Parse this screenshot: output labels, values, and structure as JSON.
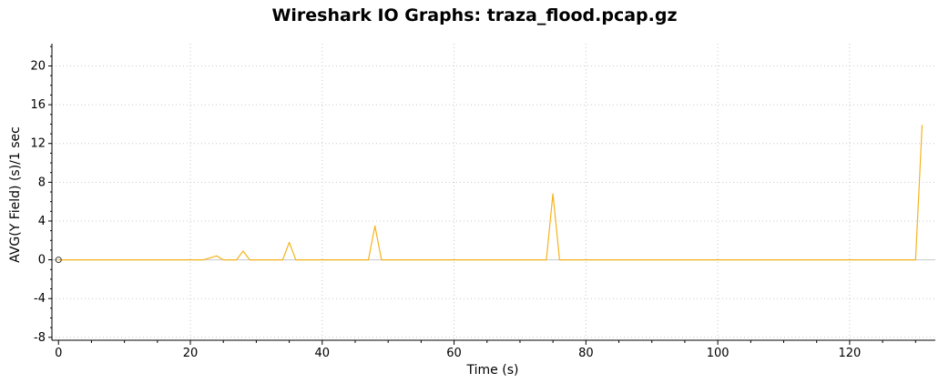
{
  "chart_data": {
    "type": "line",
    "title": "Wireshark IO Graphs: traza_flood.pcap.gz",
    "xlabel": "Time (s)",
    "ylabel": "AVG(Y Field) (s)/1 sec",
    "xlim": [
      -1,
      133
    ],
    "ylim": [
      -8.3,
      22.3
    ],
    "x_ticks": [
      0,
      20,
      40,
      60,
      80,
      100,
      120
    ],
    "y_ticks": [
      -8,
      -4,
      0,
      4,
      8,
      12,
      16,
      20
    ],
    "x_tick_labels": [
      "0",
      "20",
      "40",
      "60",
      "80",
      "100",
      "120"
    ],
    "y_tick_labels": [
      "-8",
      "-4",
      "0",
      "4",
      "8",
      "12",
      "16",
      "20"
    ],
    "grid": true,
    "colors": {
      "series": "#f5b31d",
      "zero_line": "#c8c8c8",
      "grid": "#c8c8c8",
      "axis": "#000000"
    },
    "series": [
      {
        "x": [
          0,
          22,
          23,
          24,
          25,
          27,
          28,
          29,
          34,
          35,
          36,
          47,
          48,
          49,
          74,
          75,
          76,
          130,
          131
        ],
        "y": [
          0,
          0,
          0.2,
          0.4,
          0,
          0,
          0.9,
          0,
          0,
          1.8,
          0,
          0,
          3.5,
          0,
          0,
          6.8,
          0,
          0,
          13.9
        ]
      }
    ],
    "start_marker": {
      "x": 0,
      "y": 0
    }
  }
}
